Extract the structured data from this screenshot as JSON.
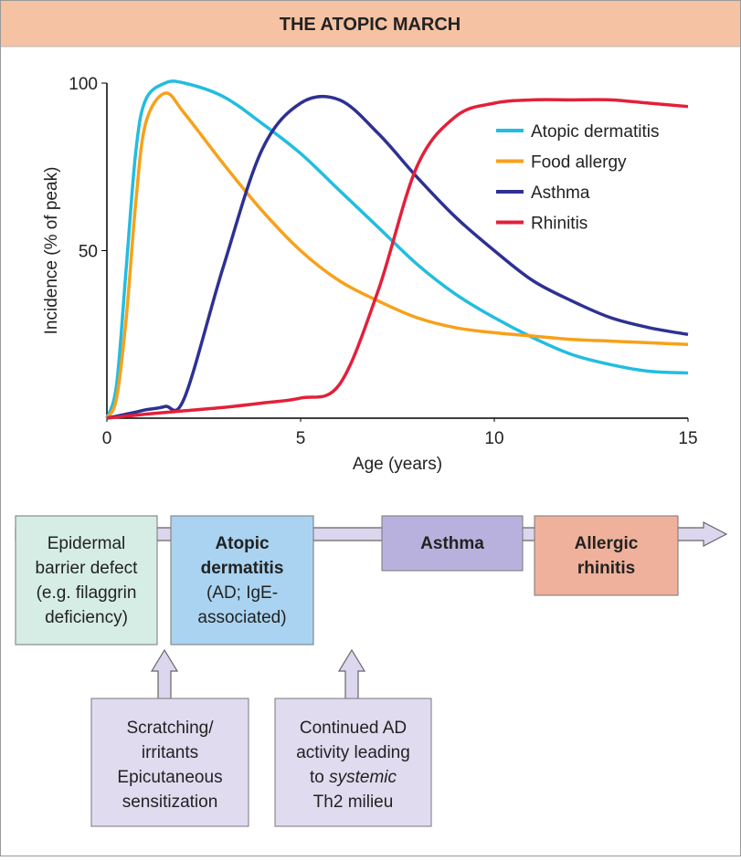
{
  "header": {
    "title": "THE ATOPIC MARCH"
  },
  "chart_data": {
    "type": "line",
    "xlabel": "Age (years)",
    "ylabel": "Incidence (% of peak)",
    "x": [
      0,
      0.25,
      0.5,
      0.75,
      1,
      1.5,
      2,
      3,
      4,
      5,
      6,
      7,
      8,
      9,
      10,
      11,
      12,
      13,
      14,
      15
    ],
    "series": [
      {
        "name": "Atopic dermatitis",
        "color": "#22bde0",
        "values": [
          0,
          10,
          45,
          80,
          95,
          100,
          100,
          96,
          88,
          79,
          68,
          57,
          46,
          37,
          30,
          24,
          19,
          16,
          14,
          13.5
        ]
      },
      {
        "name": "Food allergy",
        "color": "#f7a11a",
        "values": [
          0,
          6,
          30,
          65,
          88,
          97,
          91,
          76,
          62,
          50,
          41,
          35,
          30,
          27,
          25.5,
          24.5,
          23.5,
          23,
          22.5,
          22
        ]
      },
      {
        "name": "Asthma",
        "color": "#2e3192",
        "values": [
          0,
          0.6,
          1.2,
          1.8,
          2.5,
          3.5,
          6,
          45,
          80,
          94,
          95,
          85,
          72,
          60,
          50,
          41,
          35,
          30,
          27,
          25
        ]
      },
      {
        "name": "Rhinitis",
        "color": "#e3203a",
        "values": [
          0,
          0.3,
          0.6,
          0.9,
          1.2,
          1.7,
          2.2,
          3.2,
          4.5,
          6,
          10,
          38,
          75,
          90,
          94,
          95,
          95,
          95,
          94,
          93
        ]
      }
    ],
    "xlim": [
      0,
      15
    ],
    "xticks": [
      0,
      5,
      10,
      15
    ],
    "ylim": [
      0,
      100
    ],
    "yticks": [
      50,
      100
    ],
    "legend": "upper right"
  },
  "diagram": {
    "stages": [
      {
        "lines": [
          "Epidermal",
          "barrier defect",
          "(e.g. filaggrin",
          "deficiency)"
        ],
        "color": "#d6ede6",
        "bold_lines": 0
      },
      {
        "lines": [
          "Atopic",
          "dermatitis",
          "(AD; IgE-",
          "associated)"
        ],
        "color": "#a9d3f0",
        "bold_lines": 2
      },
      {
        "lines": [
          "Asthma"
        ],
        "color": "#b9b1dd",
        "bold_lines": 1
      },
      {
        "lines": [
          "Allergic",
          "rhinitis"
        ],
        "color": "#efb19b",
        "bold_lines": 2
      }
    ],
    "inputs": [
      {
        "lines": [
          "Scratching/",
          "irritants",
          "Epicutaneous",
          "sensitization"
        ]
      },
      {
        "lines": [
          "Continued AD",
          "activity leading",
          {
            "parts": [
              "to ",
              "systemic"
            ],
            "italic_part": 1
          },
          "Th2 milieu"
        ]
      }
    ]
  }
}
